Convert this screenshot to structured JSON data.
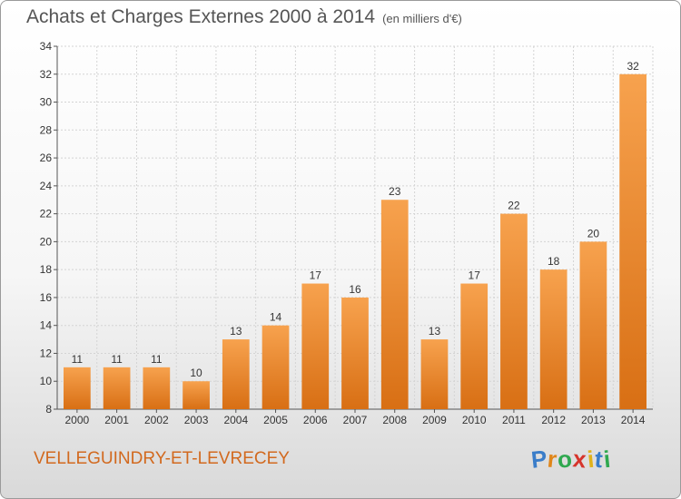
{
  "header": {
    "title": "Achats et Charges Externes 2000 à 2014",
    "subtitle": "(en milliers d'€)"
  },
  "footer": {
    "commune": "VELLEGUINDRY-ET-LEVRECEY",
    "logo_letters": [
      "P",
      "r",
      "o",
      "x",
      "i",
      "t",
      "i"
    ],
    "logo_colors": [
      "#3a7dc9",
      "#e0861a",
      "#2fa84f",
      "#d6342b",
      "#e0b21a",
      "#3a7dc9",
      "#2fa84f"
    ]
  },
  "chart_data": {
    "type": "bar",
    "categories": [
      "2000",
      "2001",
      "2002",
      "2003",
      "2004",
      "2005",
      "2006",
      "2007",
      "2008",
      "2009",
      "2010",
      "2011",
      "2012",
      "2013",
      "2014"
    ],
    "values": [
      11,
      11,
      11,
      10,
      13,
      14,
      17,
      16,
      23,
      13,
      17,
      22,
      18,
      20,
      32
    ],
    "title": "Achats et Charges Externes 2000 à 2014",
    "ylim": [
      8,
      34
    ],
    "yticks": [
      8,
      10,
      12,
      14,
      16,
      18,
      20,
      22,
      24,
      26,
      28,
      30,
      32,
      34
    ],
    "grid": true,
    "legend": "none",
    "bar_color": "#f08c2c"
  }
}
